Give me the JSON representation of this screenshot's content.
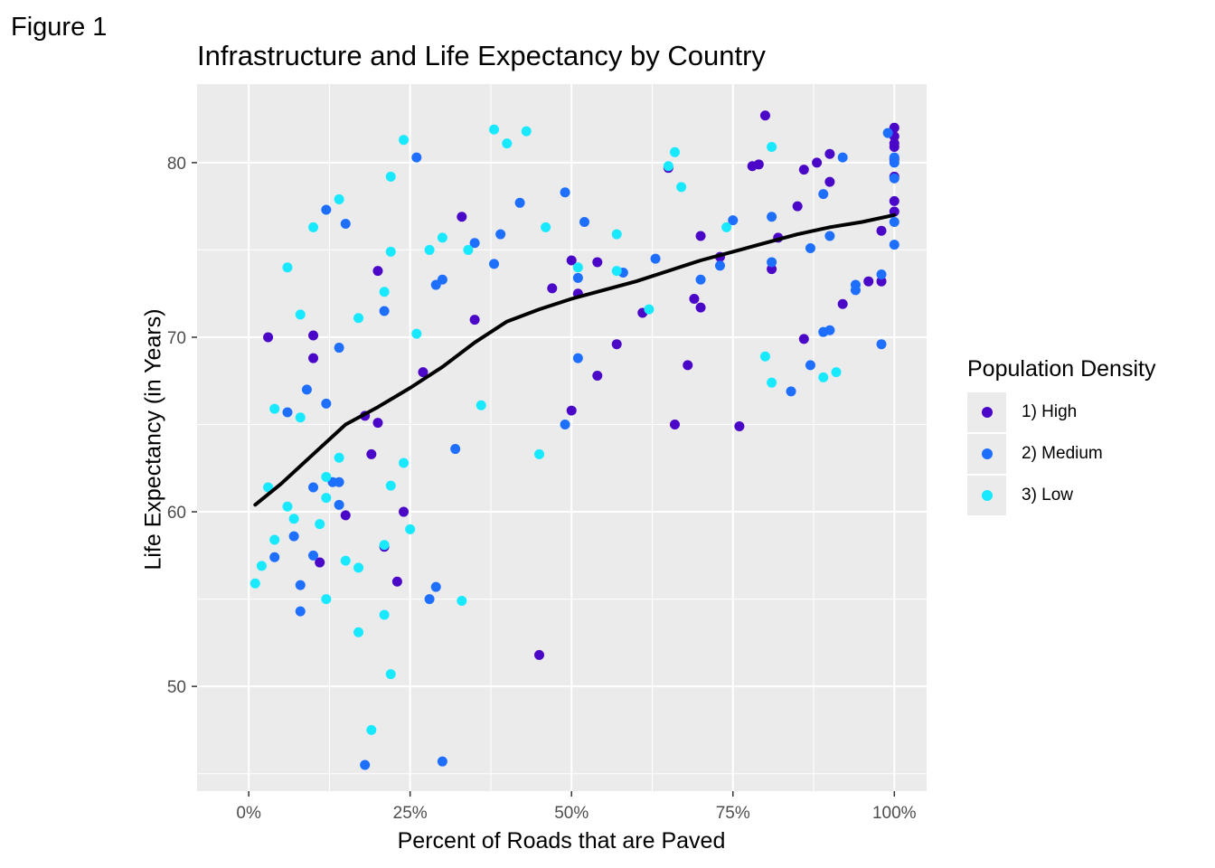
{
  "figure_label": "Figure 1",
  "chart_data": {
    "type": "scatter",
    "title": "Infrastructure and Life Expectancy by Country",
    "xlabel": "Percent of Roads that are Paved",
    "ylabel": "Life Expectancy (in Years)",
    "xlim": [
      -0.08,
      1.05
    ],
    "ylim": [
      44,
      84.5
    ],
    "x_ticks": [
      0,
      0.25,
      0.5,
      0.75,
      1.0
    ],
    "x_tick_labels": [
      "0%",
      "25%",
      "50%",
      "75%",
      "100%"
    ],
    "y_ticks": [
      50,
      60,
      70,
      80
    ],
    "y_tick_labels": [
      "50",
      "60",
      "70",
      "80"
    ],
    "grid": true,
    "legend_position": "right",
    "legend_title": "Population Density",
    "series": [
      {
        "name": "1) High",
        "color": "#4b07c7",
        "points": [
          [
            0.03,
            70.0
          ],
          [
            0.1,
            70.1
          ],
          [
            0.1,
            68.8
          ],
          [
            0.11,
            57.1
          ],
          [
            0.15,
            59.8
          ],
          [
            0.18,
            65.5
          ],
          [
            0.19,
            63.3
          ],
          [
            0.2,
            65.1
          ],
          [
            0.2,
            73.8
          ],
          [
            0.21,
            58.0
          ],
          [
            0.23,
            56.0
          ],
          [
            0.24,
            60.0
          ],
          [
            0.27,
            68.0
          ],
          [
            0.33,
            76.9
          ],
          [
            0.35,
            71.0
          ],
          [
            0.45,
            51.8
          ],
          [
            0.47,
            72.8
          ],
          [
            0.5,
            74.4
          ],
          [
            0.5,
            65.8
          ],
          [
            0.51,
            72.5
          ],
          [
            0.54,
            74.3
          ],
          [
            0.54,
            67.8
          ],
          [
            0.57,
            69.6
          ],
          [
            0.61,
            71.4
          ],
          [
            0.65,
            79.7
          ],
          [
            0.66,
            65.0
          ],
          [
            0.69,
            72.2
          ],
          [
            0.7,
            75.8
          ],
          [
            0.7,
            71.7
          ],
          [
            0.68,
            68.4
          ],
          [
            0.73,
            74.6
          ],
          [
            0.76,
            64.9
          ],
          [
            0.78,
            79.8
          ],
          [
            0.79,
            79.9
          ],
          [
            0.8,
            82.7
          ],
          [
            0.81,
            73.9
          ],
          [
            0.82,
            75.7
          ],
          [
            0.85,
            77.5
          ],
          [
            0.86,
            79.6
          ],
          [
            0.86,
            69.9
          ],
          [
            0.88,
            80.0
          ],
          [
            0.9,
            80.5
          ],
          [
            0.9,
            78.9
          ],
          [
            0.92,
            71.9
          ],
          [
            0.96,
            73.2
          ],
          [
            0.98,
            73.2
          ],
          [
            0.98,
            76.1
          ],
          [
            1.0,
            82.0
          ],
          [
            1.0,
            81.5
          ],
          [
            1.0,
            81.1
          ],
          [
            1.0,
            80.9
          ],
          [
            1.0,
            80.2
          ],
          [
            1.0,
            79.2
          ],
          [
            1.0,
            77.8
          ],
          [
            1.0,
            77.2
          ]
        ]
      },
      {
        "name": "2) Medium",
        "color": "#1f6fff",
        "points": [
          [
            0.04,
            57.4
          ],
          [
            0.06,
            65.7
          ],
          [
            0.07,
            58.6
          ],
          [
            0.08,
            55.8
          ],
          [
            0.08,
            54.3
          ],
          [
            0.09,
            67.0
          ],
          [
            0.1,
            61.4
          ],
          [
            0.1,
            57.5
          ],
          [
            0.12,
            77.3
          ],
          [
            0.12,
            66.2
          ],
          [
            0.13,
            61.7
          ],
          [
            0.14,
            60.4
          ],
          [
            0.14,
            69.4
          ],
          [
            0.14,
            61.7
          ],
          [
            0.15,
            76.5
          ],
          [
            0.18,
            45.5
          ],
          [
            0.21,
            71.5
          ],
          [
            0.26,
            80.3
          ],
          [
            0.28,
            55.0
          ],
          [
            0.29,
            73.0
          ],
          [
            0.29,
            55.7
          ],
          [
            0.3,
            73.3
          ],
          [
            0.3,
            45.7
          ],
          [
            0.32,
            63.6
          ],
          [
            0.35,
            75.4
          ],
          [
            0.38,
            74.2
          ],
          [
            0.39,
            75.9
          ],
          [
            0.42,
            77.7
          ],
          [
            0.49,
            78.3
          ],
          [
            0.49,
            65.0
          ],
          [
            0.51,
            73.4
          ],
          [
            0.51,
            68.8
          ],
          [
            0.52,
            76.6
          ],
          [
            0.58,
            73.7
          ],
          [
            0.63,
            74.5
          ],
          [
            0.7,
            73.3
          ],
          [
            0.73,
            74.1
          ],
          [
            0.75,
            76.7
          ],
          [
            0.81,
            76.9
          ],
          [
            0.81,
            74.3
          ],
          [
            0.84,
            66.9
          ],
          [
            0.87,
            75.1
          ],
          [
            0.87,
            68.4
          ],
          [
            0.89,
            78.2
          ],
          [
            0.89,
            70.3
          ],
          [
            0.9,
            70.4
          ],
          [
            0.9,
            75.8
          ],
          [
            0.92,
            80.3
          ],
          [
            0.94,
            73.0
          ],
          [
            0.94,
            72.7
          ],
          [
            0.98,
            69.6
          ],
          [
            0.98,
            73.6
          ],
          [
            0.99,
            81.7
          ],
          [
            1.0,
            80.3
          ],
          [
            1.0,
            80.0
          ],
          [
            1.0,
            79.1
          ],
          [
            1.0,
            76.6
          ],
          [
            1.0,
            75.3
          ]
        ]
      },
      {
        "name": "3) Low",
        "color": "#18e9ff",
        "points": [
          [
            0.01,
            55.9
          ],
          [
            0.02,
            56.9
          ],
          [
            0.03,
            61.4
          ],
          [
            0.04,
            65.9
          ],
          [
            0.04,
            58.4
          ],
          [
            0.06,
            74.0
          ],
          [
            0.06,
            60.3
          ],
          [
            0.07,
            59.6
          ],
          [
            0.08,
            65.4
          ],
          [
            0.08,
            71.3
          ],
          [
            0.1,
            76.3
          ],
          [
            0.11,
            59.3
          ],
          [
            0.12,
            60.8
          ],
          [
            0.12,
            62.0
          ],
          [
            0.12,
            55.0
          ],
          [
            0.14,
            63.1
          ],
          [
            0.14,
            77.9
          ],
          [
            0.15,
            57.2
          ],
          [
            0.17,
            71.1
          ],
          [
            0.17,
            56.8
          ],
          [
            0.17,
            53.1
          ],
          [
            0.19,
            47.5
          ],
          [
            0.21,
            58.1
          ],
          [
            0.21,
            54.1
          ],
          [
            0.21,
            72.6
          ],
          [
            0.22,
            74.9
          ],
          [
            0.22,
            61.5
          ],
          [
            0.22,
            50.7
          ],
          [
            0.22,
            79.2
          ],
          [
            0.24,
            62.8
          ],
          [
            0.24,
            81.3
          ],
          [
            0.25,
            59.0
          ],
          [
            0.26,
            70.2
          ],
          [
            0.28,
            75.0
          ],
          [
            0.3,
            75.7
          ],
          [
            0.33,
            54.9
          ],
          [
            0.34,
            75.0
          ],
          [
            0.36,
            66.1
          ],
          [
            0.38,
            81.9
          ],
          [
            0.4,
            81.1
          ],
          [
            0.43,
            81.8
          ],
          [
            0.45,
            63.3
          ],
          [
            0.46,
            76.3
          ],
          [
            0.51,
            74.0
          ],
          [
            0.57,
            75.9
          ],
          [
            0.57,
            73.8
          ],
          [
            0.62,
            71.6
          ],
          [
            0.65,
            79.8
          ],
          [
            0.66,
            80.6
          ],
          [
            0.67,
            78.6
          ],
          [
            0.74,
            76.3
          ],
          [
            0.8,
            68.9
          ],
          [
            0.81,
            80.9
          ],
          [
            0.81,
            67.4
          ],
          [
            0.89,
            67.7
          ],
          [
            0.91,
            68.0
          ]
        ]
      }
    ],
    "trend_line": {
      "color": "#000000",
      "points": [
        [
          0.01,
          60.4
        ],
        [
          0.05,
          61.6
        ],
        [
          0.1,
          63.3
        ],
        [
          0.15,
          65.0
        ],
        [
          0.2,
          66.0
        ],
        [
          0.25,
          67.1
        ],
        [
          0.3,
          68.3
        ],
        [
          0.35,
          69.7
        ],
        [
          0.4,
          70.9
        ],
        [
          0.45,
          71.6
        ],
        [
          0.5,
          72.2
        ],
        [
          0.55,
          72.7
        ],
        [
          0.6,
          73.2
        ],
        [
          0.65,
          73.8
        ],
        [
          0.7,
          74.4
        ],
        [
          0.75,
          74.9
        ],
        [
          0.8,
          75.4
        ],
        [
          0.85,
          75.9
        ],
        [
          0.9,
          76.3
        ],
        [
          0.95,
          76.6
        ],
        [
          1.0,
          77.0
        ]
      ]
    }
  }
}
